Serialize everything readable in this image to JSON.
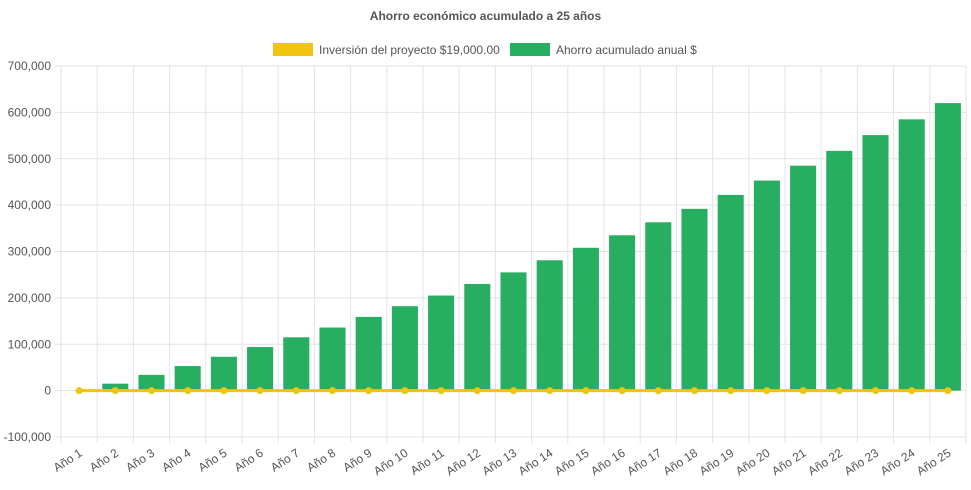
{
  "chart_data": {
    "type": "bar",
    "title": "Ahorro económico acumulado a 25 años",
    "categories": [
      "Año 1",
      "Año 2",
      "Año 3",
      "Año 4",
      "Año 5",
      "Año 6",
      "Año 7",
      "Año 8",
      "Año 9",
      "Año 10",
      "Año 11",
      "Año 12",
      "Año 13",
      "Año 14",
      "Año 15",
      "Año 16",
      "Año 17",
      "Año 18",
      "Año 19",
      "Año 20",
      "Año 21",
      "Año 22",
      "Año 23",
      "Año 24",
      "Año 25"
    ],
    "series": [
      {
        "name": "Inversión del proyecto $19,000.00",
        "type": "line",
        "color": "#f1c40f",
        "values": [
          0,
          0,
          0,
          0,
          0,
          0,
          0,
          0,
          0,
          0,
          0,
          0,
          0,
          0,
          0,
          0,
          0,
          0,
          0,
          0,
          0,
          0,
          0,
          0,
          0
        ]
      },
      {
        "name": "Ahorro acumulado anual $",
        "type": "bar",
        "color": "#27ae60",
        "values": [
          0,
          15000,
          34000,
          53000,
          73000,
          94000,
          115000,
          136000,
          159000,
          182000,
          205000,
          230000,
          255000,
          281000,
          308000,
          335000,
          363000,
          392000,
          422000,
          453000,
          485000,
          517000,
          551000,
          585000,
          620000
        ]
      }
    ],
    "yticks": [
      "700,000",
      "600,000",
      "500,000",
      "400,000",
      "300,000",
      "200,000",
      "100,000",
      "0",
      "-100,000"
    ],
    "ylim": [
      -100000,
      700000
    ],
    "grid": true,
    "legend_position": "top"
  }
}
